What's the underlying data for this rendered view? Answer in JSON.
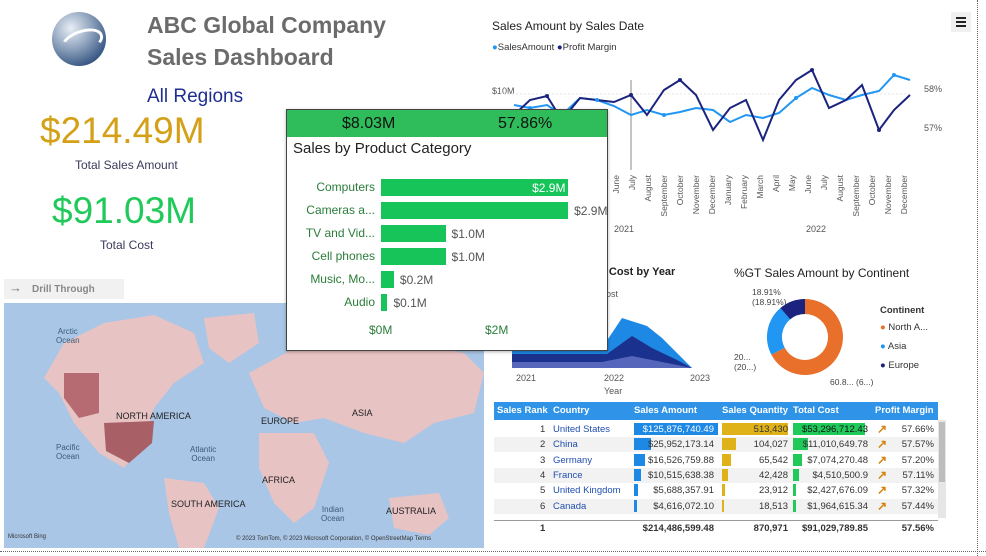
{
  "header": {
    "company": "ABC Global Company",
    "subtitle": "Sales Dashboard",
    "region": "All Regions"
  },
  "kpis": {
    "total_sales": {
      "value": "$214.49M",
      "label": "Total Sales Amount",
      "color": "#d4a017"
    },
    "total_cost": {
      "value": "$91.03M",
      "label": "Total Cost",
      "color": "#1fc95a"
    }
  },
  "drill_through": {
    "label": "Drill Through",
    "icon": "arrow-right-icon"
  },
  "map": {
    "ocean_labels": [
      "Arctic\nOcean",
      "Pacific\nOcean",
      "Atlantic\nOcean",
      "Indian\nOcean"
    ],
    "continent_labels": [
      "NORTH AMERICA",
      "EUROPE",
      "ASIA",
      "AFRICA",
      "SOUTH AMERICA",
      "AUSTRALIA"
    ],
    "brand": "Microsoft Bing",
    "attribution": "© 2023 TomTom, © 2023 Microsoft Corporation, © OpenStreetMap  Terms"
  },
  "line_chart": {
    "title": "Sales Amount by Sales Date",
    "chart_data": {
      "type": "line",
      "series": [
        {
          "name": "SalesAmount",
          "color": "#2196f3"
        },
        {
          "name": "Profit Margin",
          "color": "#1a237e"
        }
      ],
      "y_left_label": "$10M",
      "y_right_labels": [
        "58%",
        "57%"
      ],
      "x_months": [
        "June",
        "July",
        "August",
        "September",
        "October",
        "November",
        "December",
        "January",
        "February",
        "March",
        "April",
        "May",
        "June",
        "July",
        "August",
        "September",
        "October",
        "November",
        "December"
      ],
      "x_years": [
        "2021",
        "2022"
      ]
    }
  },
  "popup": {
    "header_amount": "$8.03M",
    "header_margin": "57.86%",
    "title": "Sales by Product Category",
    "chart_data": {
      "type": "bar",
      "categories": [
        "Computers",
        "Cameras a...",
        "TV and Vid...",
        "Cell phones",
        "Music, Mo...",
        "Audio"
      ],
      "values": [
        2.9,
        2.9,
        1.0,
        1.0,
        0.2,
        0.1
      ],
      "value_labels": [
        "$2.9M",
        "$2.9M",
        "$1.0M",
        "$1.0M",
        "$0.2M",
        "$0.1M"
      ],
      "xlim": [
        0,
        3.1
      ],
      "xticks": [
        "$0M",
        "$2M"
      ]
    }
  },
  "area_chart": {
    "title": "tal Cost by Year",
    "legend_fragment": "ost",
    "x_ticks": [
      "2021",
      "2022",
      "2023"
    ],
    "x_label": "Year"
  },
  "donut": {
    "title": "%GT Sales Amount by Continent",
    "legend_title": "Continent",
    "chart_data": {
      "type": "pie",
      "labels": [
        "North A...",
        "Asia",
        "Europe"
      ],
      "values": [
        60.8,
        20.3,
        18.91
      ],
      "colors": [
        "#e8702a",
        "#2196f3",
        "#1a237e"
      ],
      "label_outer": [
        "60.8... (6...)",
        "20... (20...)",
        "18.91% (18.91%)"
      ]
    }
  },
  "table": {
    "columns": [
      "Sales Rank",
      "Country",
      "Sales Amount",
      "Sales Quantity",
      "Total Cost",
      "Profit Margin"
    ],
    "rows": [
      {
        "rank": "1",
        "country": "United States",
        "amount": "$125,876,740.49",
        "qty": "513,430",
        "cost": "$53,296,712.43",
        "margin": "57.66%"
      },
      {
        "rank": "2",
        "country": "China",
        "amount": "$25,952,173.14",
        "qty": "104,027",
        "cost": "$11,010,649.78",
        "margin": "57.57%"
      },
      {
        "rank": "3",
        "country": "Germany",
        "amount": "$16,526,759.88",
        "qty": "65,542",
        "cost": "$7,074,270.48",
        "margin": "57.20%"
      },
      {
        "rank": "4",
        "country": "France",
        "amount": "$10,515,638.38",
        "qty": "42,428",
        "cost": "$4,510,500.9",
        "margin": "57.11%"
      },
      {
        "rank": "5",
        "country": "United Kingdom",
        "amount": "$5,688,357.91",
        "qty": "23,912",
        "cost": "$2,427,676.09",
        "margin": "57.32%"
      },
      {
        "rank": "6",
        "country": "Canada",
        "amount": "$4,616,072.10",
        "qty": "18,513",
        "cost": "$1,964,615.34",
        "margin": "57.44%"
      }
    ],
    "amount_fraction": [
      1.0,
      0.206,
      0.131,
      0.084,
      0.045,
      0.037
    ],
    "footer": {
      "rank": "1",
      "amount": "$214,486,599.48",
      "qty": "870,971",
      "cost": "$91,029,789.85",
      "margin": "57.56%"
    },
    "colors": {
      "amount_bar": "#1e88e5",
      "qty_bar": "#e0b21a",
      "cost_bar": "#1fc95a",
      "margin_icon": "#d4820a"
    }
  }
}
